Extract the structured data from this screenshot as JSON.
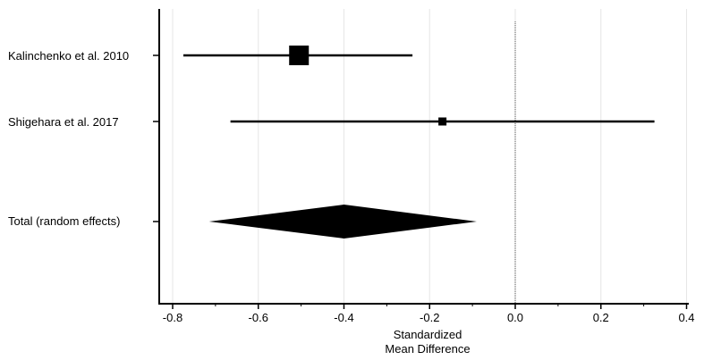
{
  "chart_data": {
    "type": "forest",
    "xlabel_lines": [
      "Standardized",
      "Mean Difference"
    ],
    "xlim": [
      -0.82,
      0.42
    ],
    "xticks": [
      -0.8,
      -0.6,
      -0.4,
      -0.2,
      0.0,
      0.2,
      0.4
    ],
    "xtick_labels": [
      "-0.8",
      "-0.6",
      "-0.4",
      "-0.2",
      "0.0",
      "0.2",
      "0.4"
    ],
    "reference_line": 0.0,
    "grid": true,
    "studies": [
      {
        "label": "Kalinchenko et al. 2010",
        "estimate": -0.505,
        "ci_low": -0.775,
        "ci_high": -0.24,
        "weight": "large"
      },
      {
        "label": "Shigehara et al. 2017",
        "estimate": -0.17,
        "ci_low": -0.665,
        "ci_high": 0.325,
        "weight": "small"
      }
    ],
    "pooled": {
      "label": "Total (random effects)",
      "estimate": -0.4,
      "ci_low": -0.715,
      "ci_high": -0.09
    }
  }
}
